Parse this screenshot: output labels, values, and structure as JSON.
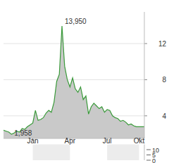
{
  "chart_data": [
    {
      "type": "area",
      "color": "#3a9a3a",
      "grid": true,
      "x": [
        0,
        1,
        2,
        3,
        4,
        5,
        6,
        7,
        8,
        9,
        10,
        11,
        12,
        13,
        14,
        15,
        16,
        17,
        18,
        19,
        20,
        21,
        22,
        23,
        24,
        25,
        26,
        27,
        28,
        29,
        30,
        31,
        32,
        33,
        34,
        35,
        36,
        37,
        38,
        39,
        40,
        41,
        42,
        43,
        44,
        45,
        46,
        47,
        48,
        49,
        50,
        51,
        52,
        53
      ],
      "values": [
        2.4,
        2.3,
        2.2,
        1.958,
        2.1,
        2.3,
        2.2,
        2.6,
        2.5,
        2.8,
        3.0,
        3.2,
        4.6,
        3.5,
        3.6,
        3.8,
        4.3,
        4.6,
        4.4,
        5.5,
        7.8,
        8.6,
        13.95,
        9.5,
        8.0,
        7.2,
        8.2,
        7.0,
        6.6,
        7.2,
        5.8,
        6.2,
        4.2,
        5.0,
        5.4,
        5.1,
        4.8,
        5.0,
        4.4,
        4.7,
        4.6,
        4.0,
        3.8,
        3.7,
        3.4,
        3.5,
        3.3,
        3.0,
        3.1,
        2.9,
        2.8,
        2.8,
        2.8,
        2.8
      ],
      "xlim": [
        0,
        53
      ],
      "xticks": [
        {
          "value": 11,
          "label": "Jan"
        },
        {
          "value": 25,
          "label": "Apr"
        },
        {
          "value": 39,
          "label": "Jul"
        },
        {
          "value": 51,
          "label": "Okt"
        }
      ],
      "ylim": [
        1.5,
        15.5
      ],
      "yticks": [
        4,
        8,
        12
      ],
      "annotations": [
        {
          "label": "13,950",
          "value": 13.95,
          "x": 22
        },
        {
          "label": "1,958",
          "value": 1.958,
          "x": 3
        }
      ]
    },
    {
      "type": "bar",
      "ylim": [
        0,
        15
      ],
      "yticks": [
        0,
        5,
        10
      ]
    }
  ]
}
